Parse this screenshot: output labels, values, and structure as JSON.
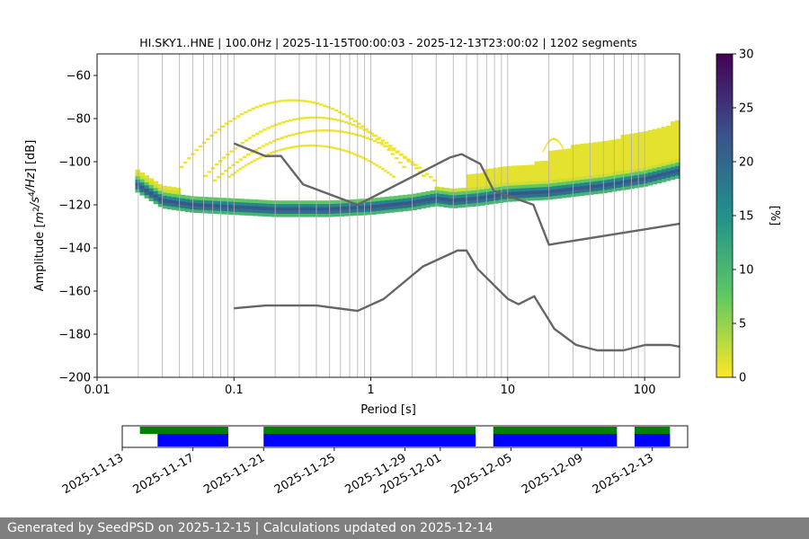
{
  "chart_data": [
    {
      "type": "heatmap",
      "title": "HI.SKY1..HNE | 100.0Hz | 2025-11-15T00:00:03 - 2025-12-13T23:00:02 | 1202 segments",
      "xlabel": "Period [s]",
      "ylabel_prefix": "Amplitude [",
      "ylabel_suffix": "] [dB]",
      "ylabel_units": [
        {
          "t": "m",
          "sup": false
        },
        {
          "t": "2",
          "sup": true
        },
        {
          "t": "/s",
          "sup": false
        },
        {
          "t": "4",
          "sup": true
        },
        {
          "t": "/Hz",
          "sup": false
        }
      ],
      "x_scale": "log",
      "xlim": [
        0.01,
        180
      ],
      "ylim": [
        -200,
        -50
      ],
      "x_ticks": [
        0.01,
        0.1,
        1,
        10,
        100
      ],
      "x_tick_labels": [
        "0.01",
        "0.1",
        "1",
        "10",
        "100"
      ],
      "y_ticks": [
        -200,
        -180,
        -160,
        -140,
        -120,
        -100,
        -80,
        -60
      ],
      "y_tick_labels": [
        "−200",
        "−180",
        "−160",
        "−140",
        "−120",
        "−100",
        "−80",
        "−60"
      ],
      "grid": true,
      "colorbar": {
        "label": "[%]",
        "range": [
          0,
          30
        ],
        "ticks": [
          0,
          5,
          10,
          15,
          20,
          25,
          30
        ],
        "tick_labels": [
          "0",
          "5",
          "10",
          "15",
          "20",
          "25",
          "30"
        ],
        "colormap": "viridis_r",
        "colors": [
          "#fde725",
          "#5ec962",
          "#21918c",
          "#3b528b",
          "#440154"
        ]
      },
      "density_ridges": [
        {
          "x": [
            0.019,
            0.03,
            0.05,
            0.1,
            0.2,
            0.5,
            1,
            2,
            3,
            4,
            6,
            10,
            20,
            50,
            100,
            180
          ],
          "y": [
            -110,
            -118,
            -120,
            -121,
            -122,
            -122,
            -121,
            -119,
            -117,
            -118,
            -117,
            -115,
            -114,
            -111,
            -108,
            -104
          ]
        }
      ],
      "reference_curves": [
        {
          "x": [
            0.1,
            0.17,
            0.22,
            0.32,
            0.8,
            3.8,
            4.6,
            6.3,
            7.9,
            15.4,
            20,
            180
          ],
          "y": [
            -91.5,
            -97.4,
            -97.3,
            -110.5,
            -120,
            -98,
            -96.5,
            -101,
            -113.5,
            -120,
            -138.5,
            -128.8
          ]
        },
        {
          "x": [
            0.1,
            0.17,
            0.4,
            0.8,
            1.24,
            2.4,
            4.3,
            5,
            6,
            10,
            12,
            15.6,
            21.9,
            31.6,
            45,
            70,
            101,
            154,
            180
          ],
          "y": [
            -168,
            -166.7,
            -166.7,
            -169.2,
            -163.7,
            -148.6,
            -141.2,
            -141.2,
            -149.6,
            -163.6,
            -166.1,
            -162.4,
            -177.5,
            -185,
            -187.5,
            -187.5,
            -185,
            -185,
            -185.8
          ]
        }
      ],
      "reference_curve_color": "#666666"
    },
    {
      "type": "timeline",
      "x_ticks": [
        "2025-11-13",
        "2025-11-17",
        "2025-11-21",
        "2025-11-25",
        "2025-11-29",
        "2025-12-01",
        "2025-12-05",
        "2025-12-09",
        "2025-12-13"
      ],
      "xlim": [
        "2025-11-13",
        "2025-12-15"
      ],
      "series": [
        {
          "color": "#008000",
          "segments": [
            [
              "2025-11-14",
              "2025-11-19"
            ],
            [
              "2025-11-21",
              "2025-12-03"
            ],
            [
              "2025-12-04",
              "2025-12-11"
            ],
            [
              "2025-12-12",
              "2025-12-14"
            ]
          ]
        },
        {
          "color": "#0000ff",
          "segments": [
            [
              "2025-11-15",
              "2025-11-19"
            ],
            [
              "2025-11-21",
              "2025-12-03"
            ],
            [
              "2025-12-04",
              "2025-12-11"
            ],
            [
              "2025-12-12",
              "2025-12-14"
            ]
          ]
        }
      ]
    }
  ],
  "footer": "Generated by SeedPSD on 2025-12-15 | Calculations updated on 2025-12-14"
}
